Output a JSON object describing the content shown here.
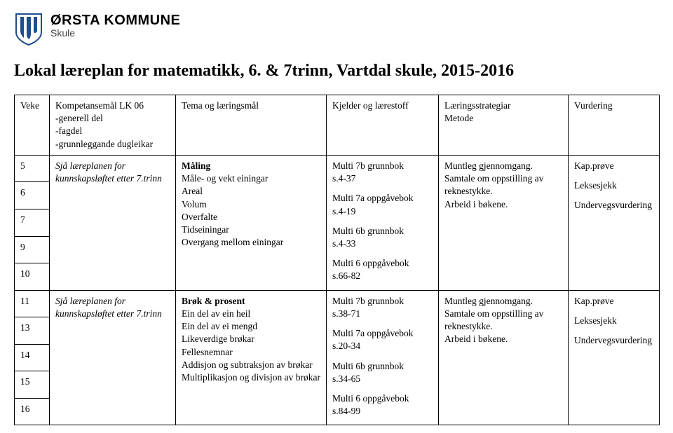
{
  "header": {
    "org_name": "ØRSTA KOMMUNE",
    "org_sub": "Skule"
  },
  "title": "Lokal læreplan for matematikk, 6. & 7trinn, Vartdal skule, 2015-2016",
  "columns": {
    "veke": "Veke",
    "kompetansemaal": "Kompetansemål LK 06\n-generell del\n-fagdel\n-grunnleggande dugleikar",
    "tema": "Tema og læringsmål",
    "kjelder": "Kjelder og lærestoff",
    "strategi": "Læringsstrategiar\nMetode",
    "vurdering": "Vurdering"
  },
  "rows": [
    {
      "veker": [
        "5",
        "6",
        "7",
        "9",
        "10"
      ],
      "kompetanse": "Sjå læreplanen for kunnskapsløftet etter 7.trinn",
      "tema_title": "Måling",
      "tema_body": "Måle- og vekt einingar\nAreal\nVolum\nOverfalte\nTidseiningar\nOvergang mellom einingar",
      "kjelder": [
        "Multi 7b grunnbok\ns.4-37",
        "Multi 7a oppgåvebok\ns.4-19",
        "Multi 6b grunnbok\ns.4-33",
        "Multi 6 oppgåvebok\ns.66-82"
      ],
      "strategi": "Muntleg gjennomgang.\nSamtale om oppstilling av reknestykke.\nArbeid i bøkene.",
      "vurdering": [
        "Kap.prøve",
        "Leksesjekk",
        "Undervegsvurdering"
      ]
    },
    {
      "veker": [
        "11",
        "13",
        "14",
        "15",
        "16"
      ],
      "kompetanse": "Sjå læreplanen for kunnskapsløftet etter 7.trinn",
      "tema_title": "Brøk & prosent",
      "tema_body": "Ein del av ein heil\nEin del av ei mengd\nLikeverdige brøkar\nFellesnemnar\nAddisjon og subtraksjon av brøkar\nMultiplikasjon og divisjon av brøkar",
      "kjelder": [
        "Multi 7b grunnbok\ns.38-71",
        "Multi 7a oppgåvebok\ns.20-34",
        "Multi 6b grunnbok\ns.34-65",
        "Multi 6 oppgåvebok\ns.84-99"
      ],
      "strategi": "Muntleg gjennomgang.\nSamtale om oppstilling av reknestykke.\nArbeid i bøkene.",
      "vurdering": [
        "Kap.prøve",
        "Leksesjekk",
        "Undervegsvurdering"
      ]
    }
  ],
  "shield_colors": {
    "stroke": "#1f4e8c",
    "fill_light": "#ffffff",
    "fill_dark": "#1f4e8c"
  }
}
